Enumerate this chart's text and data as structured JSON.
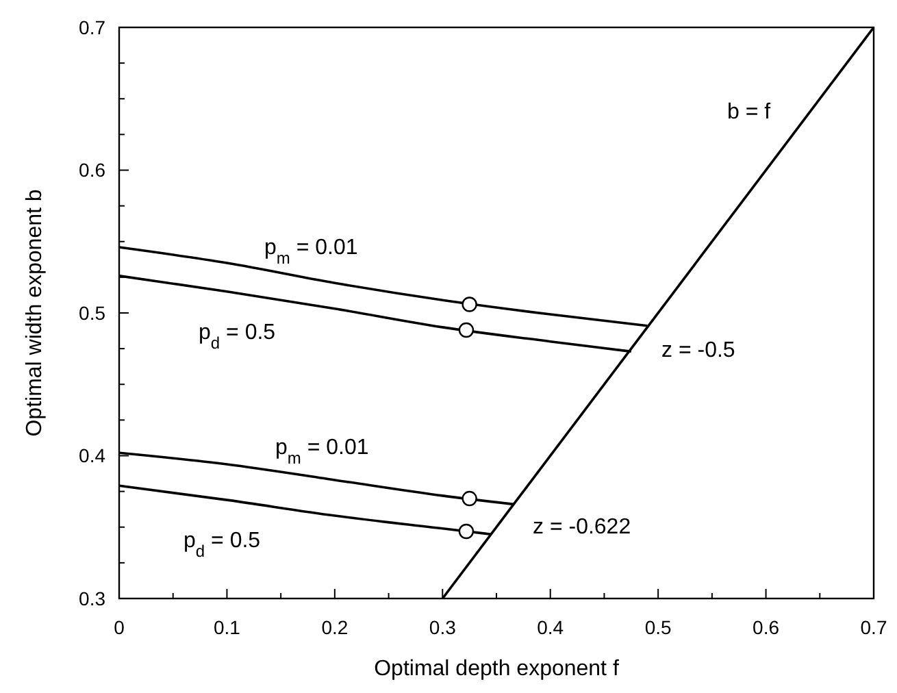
{
  "chart_data": {
    "type": "line",
    "xlabel": "Optimal depth exponent f",
    "ylabel": "Optimal width exponent b",
    "xlim": [
      0,
      0.7
    ],
    "ylim": [
      0.3,
      0.7
    ],
    "xticks": [
      0,
      {
        "value": 0.05,
        "label": null
      },
      0.1,
      {
        "value": 0.15,
        "label": null
      },
      0.2,
      {
        "value": 0.25,
        "label": null
      },
      0.3,
      {
        "value": 0.35,
        "label": null
      },
      0.4,
      {
        "value": 0.45,
        "label": null
      },
      0.5,
      {
        "value": 0.55,
        "label": null
      },
      0.6,
      {
        "value": 0.65,
        "label": null
      },
      0.7
    ],
    "yticks": [
      0.3,
      {
        "value": 0.325,
        "label": null
      },
      {
        "value": 0.35,
        "label": null
      },
      {
        "value": 0.375,
        "label": null
      },
      0.4,
      {
        "value": 0.425,
        "label": null
      },
      {
        "value": 0.45,
        "label": null
      },
      {
        "value": 0.475,
        "label": null
      },
      0.5,
      {
        "value": 0.525,
        "label": null
      },
      {
        "value": 0.55,
        "label": null
      },
      {
        "value": 0.575,
        "label": null
      },
      0.6,
      {
        "value": 0.625,
        "label": null
      },
      {
        "value": 0.65,
        "label": null
      },
      {
        "value": 0.675,
        "label": null
      },
      0.7
    ],
    "grid": false,
    "marker": "none",
    "line_style": "solid",
    "series": [
      {
        "color": "#000000",
        "x": [
          0,
          0.1,
          0.2,
          0.3,
          0.4,
          0.49
        ],
        "values": [
          0.546,
          0.535,
          0.521,
          0.509,
          0.499,
          0.491
        ]
      },
      {
        "color": "#000000",
        "x": [
          0,
          0.1,
          0.2,
          0.3,
          0.4,
          0.475
        ],
        "values": [
          0.526,
          0.515,
          0.503,
          0.49,
          0.48,
          0.473
        ]
      },
      {
        "color": "#000000",
        "x": [
          0,
          0.1,
          0.2,
          0.3,
          0.366
        ],
        "values": [
          0.402,
          0.394,
          0.383,
          0.372,
          0.366
        ]
      },
      {
        "color": "#000000",
        "x": [
          0,
          0.1,
          0.2,
          0.3,
          0.345
        ],
        "values": [
          0.379,
          0.369,
          0.358,
          0.349,
          0.345
        ]
      },
      {
        "color": "#000000",
        "x": [
          0.3,
          0.7
        ],
        "values": [
          0.3,
          0.7
        ]
      },
      {
        "type": "scatter",
        "marker": "circle",
        "color": "#ffffff",
        "x": [
          0.325,
          0.322,
          0.325,
          0.322
        ],
        "values": [
          0.506,
          0.488,
          0.37,
          0.347
        ]
      }
    ],
    "annotations": [
      "p$_{m}$ = 0.01",
      "p$_{d}$ = 0.5",
      "z = -0.5",
      "b = f",
      "p$_{m}$ = 0.01",
      "p$_{d}$ = 0.5",
      "z = -0.622"
    ]
  }
}
